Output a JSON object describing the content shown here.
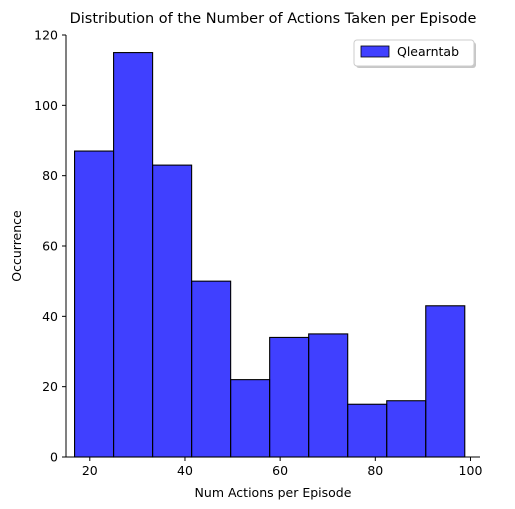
{
  "chart_data": {
    "type": "bar",
    "title": "Distribution of the Number of Actions Taken per Episode",
    "xlabel": "Num Actions per Episode",
    "ylabel": "Occurrence",
    "xlim": [
      15,
      102
    ],
    "ylim": [
      0,
      120
    ],
    "x_ticks": [
      20,
      40,
      60,
      80,
      100
    ],
    "y_ticks": [
      0,
      20,
      40,
      60,
      80,
      100,
      120
    ],
    "legend_position": "top-right",
    "grid": false,
    "series": [
      {
        "name": "Qlearntab",
        "color": "#0000ff",
        "bins": [
          {
            "x0": 16.8,
            "x1": 25.0,
            "count": 87
          },
          {
            "x0": 25.0,
            "x1": 33.2,
            "count": 115
          },
          {
            "x0": 33.2,
            "x1": 41.4,
            "count": 83
          },
          {
            "x0": 41.4,
            "x1": 49.6,
            "count": 50
          },
          {
            "x0": 49.6,
            "x1": 57.8,
            "count": 22
          },
          {
            "x0": 57.8,
            "x1": 66.0,
            "count": 34
          },
          {
            "x0": 66.0,
            "x1": 74.2,
            "count": 35
          },
          {
            "x0": 74.2,
            "x1": 82.4,
            "count": 15
          },
          {
            "x0": 82.4,
            "x1": 90.6,
            "count": 16
          },
          {
            "x0": 90.6,
            "x1": 98.8,
            "count": 43
          }
        ]
      }
    ]
  }
}
